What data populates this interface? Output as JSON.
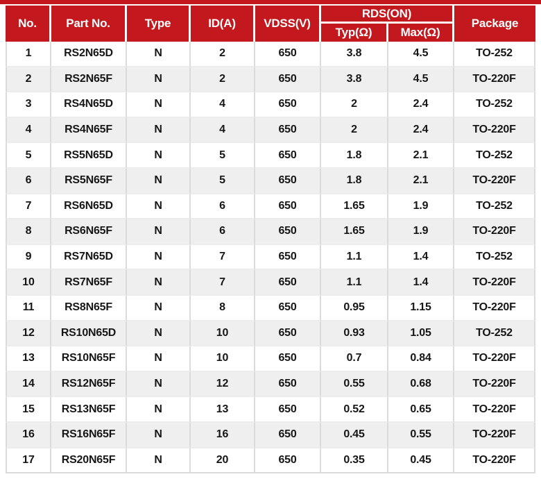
{
  "colors": {
    "header_red": "#C2181E",
    "row_alt_gray": "#F0EFF0",
    "grid_border": "#DBDADB",
    "header_text": "#FFFFFF",
    "body_text": "#161616"
  },
  "table": {
    "header": {
      "no": "No.",
      "part_no": "Part No.",
      "type": "Type",
      "id": "ID(A)",
      "vdss": "VDSS(V)",
      "rds_on": "RDS(ON)",
      "typ": "Typ(Ω)",
      "max": "Max(Ω)",
      "package": "Package"
    },
    "rows": [
      [
        "1",
        "RS2N65D",
        "N",
        "2",
        "650",
        "3.8",
        "4.5",
        "TO-252"
      ],
      [
        "2",
        "RS2N65F",
        "N",
        "2",
        "650",
        "3.8",
        "4.5",
        "TO-220F"
      ],
      [
        "3",
        "RS4N65D",
        "N",
        "4",
        "650",
        "2",
        "2.4",
        "TO-252"
      ],
      [
        "4",
        "RS4N65F",
        "N",
        "4",
        "650",
        "2",
        "2.4",
        "TO-220F"
      ],
      [
        "5",
        "RS5N65D",
        "N",
        "5",
        "650",
        "1.8",
        "2.1",
        "TO-252"
      ],
      [
        "6",
        "RS5N65F",
        "N",
        "5",
        "650",
        "1.8",
        "2.1",
        "TO-220F"
      ],
      [
        "7",
        "RS6N65D",
        "N",
        "6",
        "650",
        "1.65",
        "1.9",
        "TO-252"
      ],
      [
        "8",
        "RS6N65F",
        "N",
        "6",
        "650",
        "1.65",
        "1.9",
        "TO-220F"
      ],
      [
        "9",
        "RS7N65D",
        "N",
        "7",
        "650",
        "1.1",
        "1.4",
        "TO-252"
      ],
      [
        "10",
        "RS7N65F",
        "N",
        "7",
        "650",
        "1.1",
        "1.4",
        "TO-220F"
      ],
      [
        "11",
        "RS8N65F",
        "N",
        "8",
        "650",
        "0.95",
        "1.15",
        "TO-220F"
      ],
      [
        "12",
        "RS10N65D",
        "N",
        "10",
        "650",
        "0.93",
        "1.05",
        "TO-252"
      ],
      [
        "13",
        "RS10N65F",
        "N",
        "10",
        "650",
        "0.7",
        "0.84",
        "TO-220F"
      ],
      [
        "14",
        "RS12N65F",
        "N",
        "12",
        "650",
        "0.55",
        "0.68",
        "TO-220F"
      ],
      [
        "15",
        "RS13N65F",
        "N",
        "13",
        "650",
        "0.52",
        "0.65",
        "TO-220F"
      ],
      [
        "16",
        "RS16N65F",
        "N",
        "16",
        "650",
        "0.45",
        "0.55",
        "TO-220F"
      ],
      [
        "17",
        "RS20N65F",
        "N",
        "20",
        "650",
        "0.35",
        "0.45",
        "TO-220F"
      ]
    ]
  }
}
